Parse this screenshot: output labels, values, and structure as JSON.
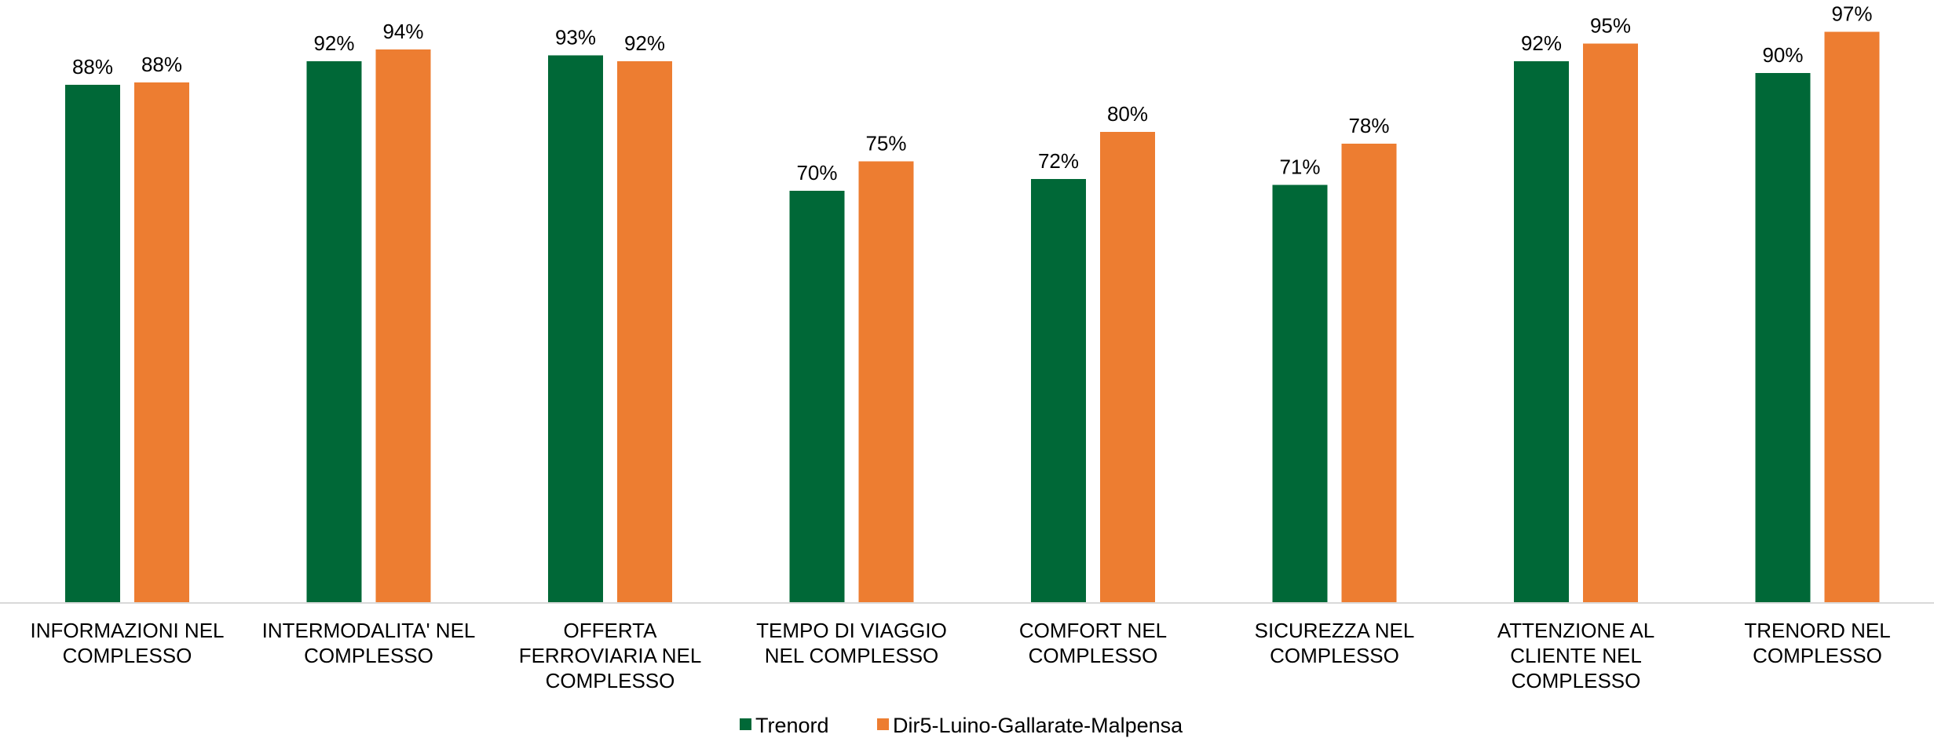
{
  "chart_data": {
    "type": "bar",
    "categories": [
      [
        "INFORMAZIONI NEL",
        "COMPLESSO"
      ],
      [
        "INTERMODALITA' NEL",
        "COMPLESSO"
      ],
      [
        "OFFERTA",
        "FERROVIARIA NEL",
        "COMPLESSO"
      ],
      [
        "TEMPO DI VIAGGIO",
        "NEL COMPLESSO"
      ],
      [
        "COMFORT NEL",
        "COMPLESSO"
      ],
      [
        "SICUREZZA NEL",
        "COMPLESSO"
      ],
      [
        "ATTENZIONE AL",
        "CLIENTE NEL",
        "COMPLESSO"
      ],
      [
        "TRENORD NEL",
        "COMPLESSO"
      ]
    ],
    "series": [
      {
        "name": "Trenord",
        "color": "#006837",
        "values": [
          88,
          92,
          93,
          70,
          72,
          71,
          92,
          90
        ],
        "labels": [
          "88%",
          "92%",
          "93%",
          "70%",
          "72%",
          "71%",
          "92%",
          "90%"
        ]
      },
      {
        "name": "Dir5-Luino-Gallarate-Malpensa",
        "color": "#ED7D31",
        "values": [
          88.4,
          94,
          92,
          75,
          80,
          78,
          95,
          97
        ],
        "labels": [
          "88%",
          "94%",
          "92%",
          "75%",
          "80%",
          "78%",
          "95%",
          "97%"
        ]
      }
    ],
    "title": "",
    "xlabel": "",
    "ylabel": "",
    "ylim": [
      0,
      100
    ],
    "grid": false,
    "legend": "bottom-center",
    "axis_color": "#D9D9D9"
  }
}
